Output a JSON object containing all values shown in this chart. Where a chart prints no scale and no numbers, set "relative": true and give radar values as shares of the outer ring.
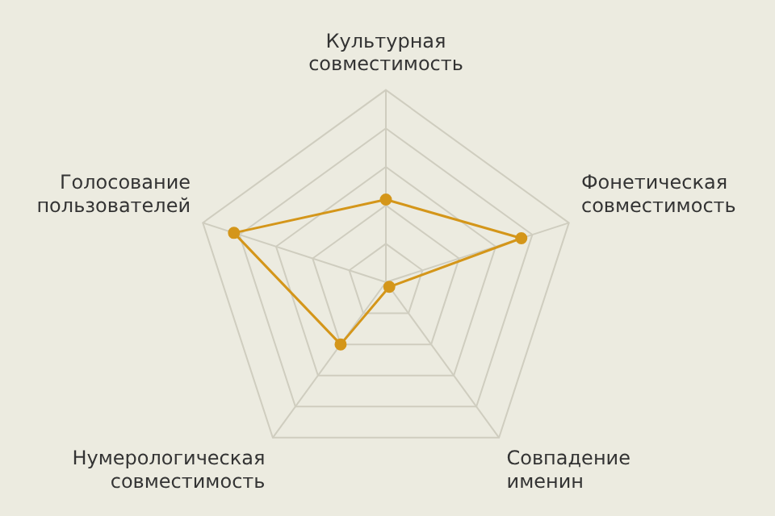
{
  "chart_data": {
    "type": "radar",
    "relative": true,
    "categories": [
      "Культурная совместимость",
      "Фонетическая совместимость",
      "Совпадение именин",
      "Нумерологическая совместимость",
      "Голосование пользователей"
    ],
    "series": [
      {
        "color": "#d4961a",
        "values": [
          0.43,
          0.74,
          0.03,
          0.4,
          0.83
        ]
      }
    ],
    "grid": true,
    "legend": false,
    "marker": "circle",
    "line_style": "solid"
  }
}
